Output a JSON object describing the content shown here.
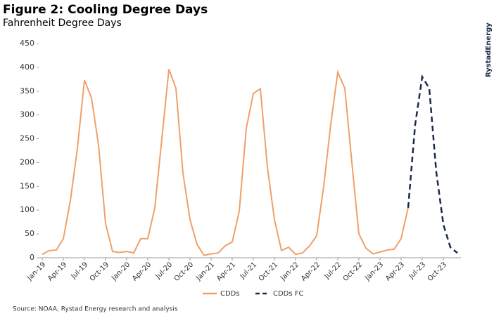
{
  "chart_data": {
    "type": "line",
    "title": "Figure 2: Cooling Degree Days",
    "subtitle": "Fahrenheit Degree Days",
    "source": "Source: NOAA, Rystad Energy research and analysis",
    "logo": "RystadEnergy",
    "categories": [
      "Jan-19",
      null,
      null,
      "Apr-19",
      null,
      null,
      "Jul-19",
      null,
      null,
      "Oct-19",
      null,
      null,
      "Jan-20",
      null,
      null,
      "Apr-20",
      null,
      null,
      "Jul-20",
      null,
      null,
      "Oct-20",
      null,
      null,
      "Jan-21",
      null,
      null,
      "Apr-21",
      null,
      null,
      "Jul-21",
      null,
      null,
      "Oct-21",
      null,
      null,
      "Jan-22",
      null,
      null,
      "Apr-22",
      null,
      null,
      "Jul-22",
      null,
      null,
      "Oct-22",
      null,
      null,
      "Jan-23",
      null,
      null,
      "Apr-23",
      null,
      null,
      "Jul-23",
      null,
      null,
      "Oct-23",
      null,
      null
    ],
    "series": [
      {
        "name": "CDDs",
        "color": "#f0a069",
        "dash": false,
        "values": [
          7,
          15,
          16,
          40,
          120,
          230,
          373,
          336,
          237,
          72,
          13,
          11,
          13,
          10,
          40,
          40,
          105,
          250,
          396,
          356,
          178,
          80,
          28,
          5,
          8,
          10,
          25,
          33,
          98,
          272,
          345,
          355,
          190,
          80,
          15,
          22,
          7,
          10,
          25,
          46,
          150,
          280,
          390,
          356,
          200,
          50,
          20,
          8,
          12,
          16,
          18,
          40,
          105,
          null,
          null,
          null,
          null,
          null,
          null,
          null
        ]
      },
      {
        "name": "CDDs FC",
        "color": "#1b2a4a",
        "dash": true,
        "values": [
          null,
          null,
          null,
          null,
          null,
          null,
          null,
          null,
          null,
          null,
          null,
          null,
          null,
          null,
          null,
          null,
          null,
          null,
          null,
          null,
          null,
          null,
          null,
          null,
          null,
          null,
          null,
          null,
          null,
          null,
          null,
          null,
          null,
          null,
          null,
          null,
          null,
          null,
          null,
          null,
          null,
          null,
          null,
          null,
          null,
          null,
          null,
          null,
          null,
          null,
          null,
          null,
          105,
          280,
          380,
          356,
          180,
          70,
          22,
          10
        ]
      }
    ],
    "ylim": [
      0,
      450
    ],
    "yticks": [
      0,
      50,
      100,
      150,
      200,
      250,
      300,
      350,
      400,
      450
    ],
    "legend": "bottom"
  }
}
